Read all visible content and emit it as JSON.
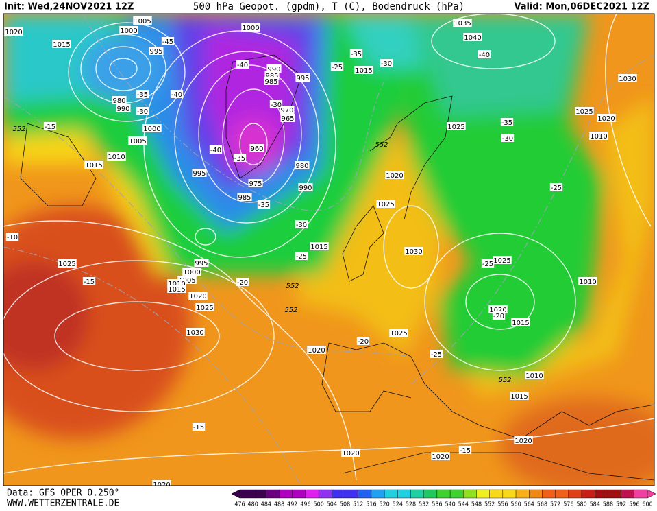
{
  "header": {
    "init": "Init: Wed,24NOV2021 12Z",
    "title": "500 hPa Geopot. (gpdm), T (C), Bodendruck (hPa)",
    "valid": "Valid: Mon,06DEC2021 12Z"
  },
  "footer": {
    "source": "Data: GFS OPER 0.250°",
    "site": "WWW.WETTERZENTRALE.DE"
  },
  "colorbar": {
    "labels": [
      476,
      480,
      484,
      488,
      492,
      496,
      500,
      504,
      508,
      512,
      516,
      520,
      524,
      528,
      532,
      536,
      540,
      544,
      548,
      552,
      556,
      560,
      564,
      568,
      572,
      576,
      580,
      584,
      588,
      592,
      596,
      600
    ]
  },
  "map": {
    "pressure_labels": [
      1020,
      1005,
      1000,
      1015,
      995,
      1000,
      990,
      985,
      980,
      985,
      990,
      1000,
      1005,
      1010,
      1015,
      995,
      960,
      980,
      975,
      985,
      990,
      970,
      965,
      995,
      1015,
      1035,
      1040,
      1025,
      1020,
      1025,
      1015,
      1030,
      1025,
      995,
      1000,
      1005,
      1010,
      1015,
      1020,
      1025,
      1030,
      1025,
      1020,
      1025,
      1020,
      1015,
      1010,
      1010,
      1015,
      1020,
      1020,
      1020,
      1030,
      1025,
      1020,
      1010,
      1020
    ],
    "temperature_labels": [
      -45,
      -40,
      -35,
      -30,
      -40,
      -25,
      -35,
      -30,
      -30,
      -40,
      -35,
      -35,
      -30,
      -25,
      -20,
      -15,
      -10,
      -15,
      -20,
      -25,
      -25,
      -35,
      -30,
      -25,
      -40,
      -15,
      -15,
      -20
    ],
    "height_labels": [
      552,
      552,
      552,
      552,
      552
    ]
  }
}
